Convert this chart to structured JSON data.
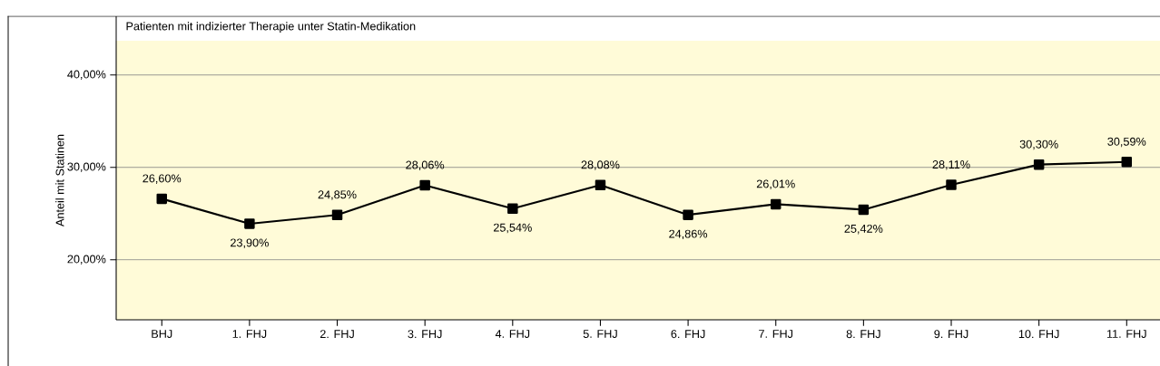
{
  "chart_data": {
    "type": "line",
    "title": "Patienten mit indizierter Therapie unter Statin-Medikation",
    "ylabel": "Anteil mit Statinen",
    "categories": [
      "BHJ",
      "1. FHJ",
      "2. FHJ",
      "3. FHJ",
      "4. FHJ",
      "5. FHJ",
      "6. FHJ",
      "7. FHJ",
      "8. FHJ",
      "9. FHJ",
      "10. FHJ",
      "11. FHJ"
    ],
    "series": [
      {
        "color": "#000000",
        "values": [
          26.6,
          23.9,
          24.85,
          28.06,
          25.54,
          28.08,
          24.86,
          26.01,
          25.42,
          28.11,
          30.3,
          30.59
        ],
        "value_labels": [
          "26,60%",
          "23,90%",
          "24,85%",
          "28,06%",
          "25,54%",
          "28,08%",
          "24,86%",
          "26,01%",
          "25,42%",
          "28,11%",
          "30,30%",
          "30,59%"
        ]
      }
    ],
    "ylim": [
      13.5,
      43.7
    ],
    "yticks": [
      {
        "value": 20,
        "label": "20,00%"
      },
      {
        "value": 30,
        "label": "30,00%"
      },
      {
        "value": 40,
        "label": "40,00%"
      }
    ],
    "grid": "y",
    "marker": "square",
    "line_style": "solid"
  }
}
